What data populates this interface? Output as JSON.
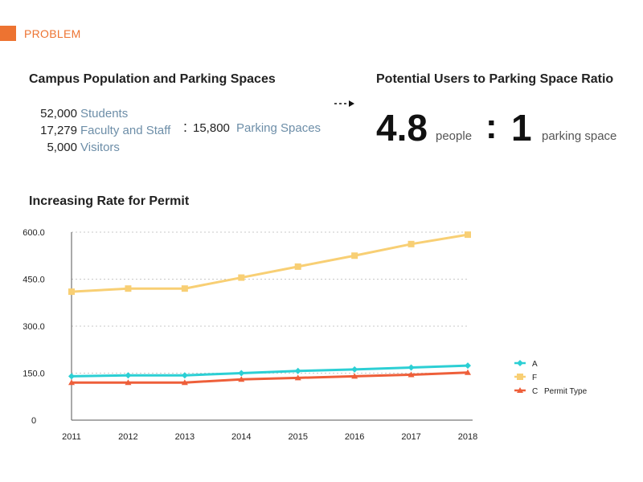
{
  "section_tag": "PROBLEM",
  "campus": {
    "title": "Campus Population and Parking Spaces",
    "population": [
      {
        "value": "52,000",
        "label": "Students"
      },
      {
        "value": "17,279",
        "label": "Faculty and Staff"
      },
      {
        "value": "5,000",
        "label": "Visitors"
      }
    ],
    "separator": ":",
    "parking_value": "15,800",
    "parking_label": "Parking Spaces"
  },
  "ratio": {
    "title": "Potential Users to Parking Space Ratio",
    "left_value": "4.8",
    "left_unit": "people",
    "separator": ":",
    "right_value": "1",
    "right_unit": "parking space"
  },
  "chart_data": {
    "type": "line",
    "title": "Increasing Rate for Permit",
    "x": [
      "2011",
      "2012",
      "2013",
      "2014",
      "2015",
      "2016",
      "2017",
      "2018"
    ],
    "ylim": [
      0,
      600
    ],
    "yticks": [
      "0",
      "150.0",
      "300.0",
      "450.0",
      "600.0"
    ],
    "ytick_values": [
      0,
      150,
      300,
      450,
      600
    ],
    "grid": true,
    "legend_position": "right",
    "legend_title": "Permit Type",
    "series": [
      {
        "name": "A",
        "color": "#2ccfd4",
        "marker": "diamond",
        "values": [
          140,
          143,
          143,
          150,
          157,
          162,
          168,
          174
        ]
      },
      {
        "name": "F",
        "color": "#f8cf74",
        "marker": "square",
        "values": [
          410,
          420,
          420,
          455,
          490,
          525,
          562,
          592
        ]
      },
      {
        "name": "C",
        "color": "#ee5f3a",
        "marker": "triangle",
        "values": [
          120,
          120,
          120,
          130,
          135,
          140,
          145,
          152
        ]
      }
    ]
  }
}
